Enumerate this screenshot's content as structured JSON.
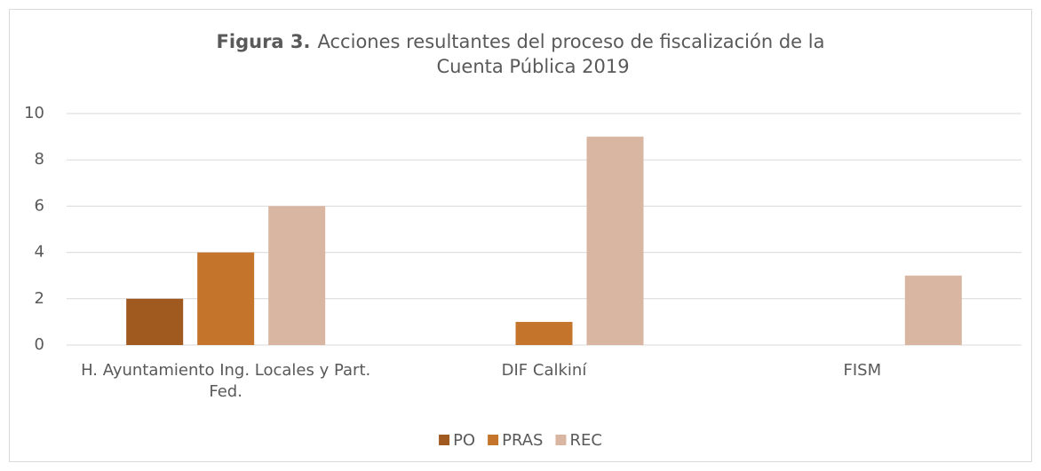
{
  "chart_data": {
    "type": "bar",
    "title": {
      "label": "Figura 3.",
      "text": [
        "Acciones resultantes del proceso de fiscalización de la",
        "Cuenta Pública 2019"
      ]
    },
    "categories": [
      "H. Ayuntamiento Ing. Locales y Part. Fed.",
      "DIF Calkiní",
      "FISM"
    ],
    "series": [
      {
        "name": "PO",
        "color": "#a0591f",
        "values": [
          2,
          null,
          null
        ]
      },
      {
        "name": "PRAS",
        "color": "#c5742c",
        "values": [
          4,
          1,
          null
        ]
      },
      {
        "name": "REC",
        "color": "#d9b6a1",
        "values": [
          6,
          9,
          3
        ]
      }
    ],
    "ylim": [
      0,
      10
    ],
    "yticks": [
      0,
      2,
      4,
      6,
      8,
      10
    ],
    "grid": true,
    "legend": "bottom"
  }
}
